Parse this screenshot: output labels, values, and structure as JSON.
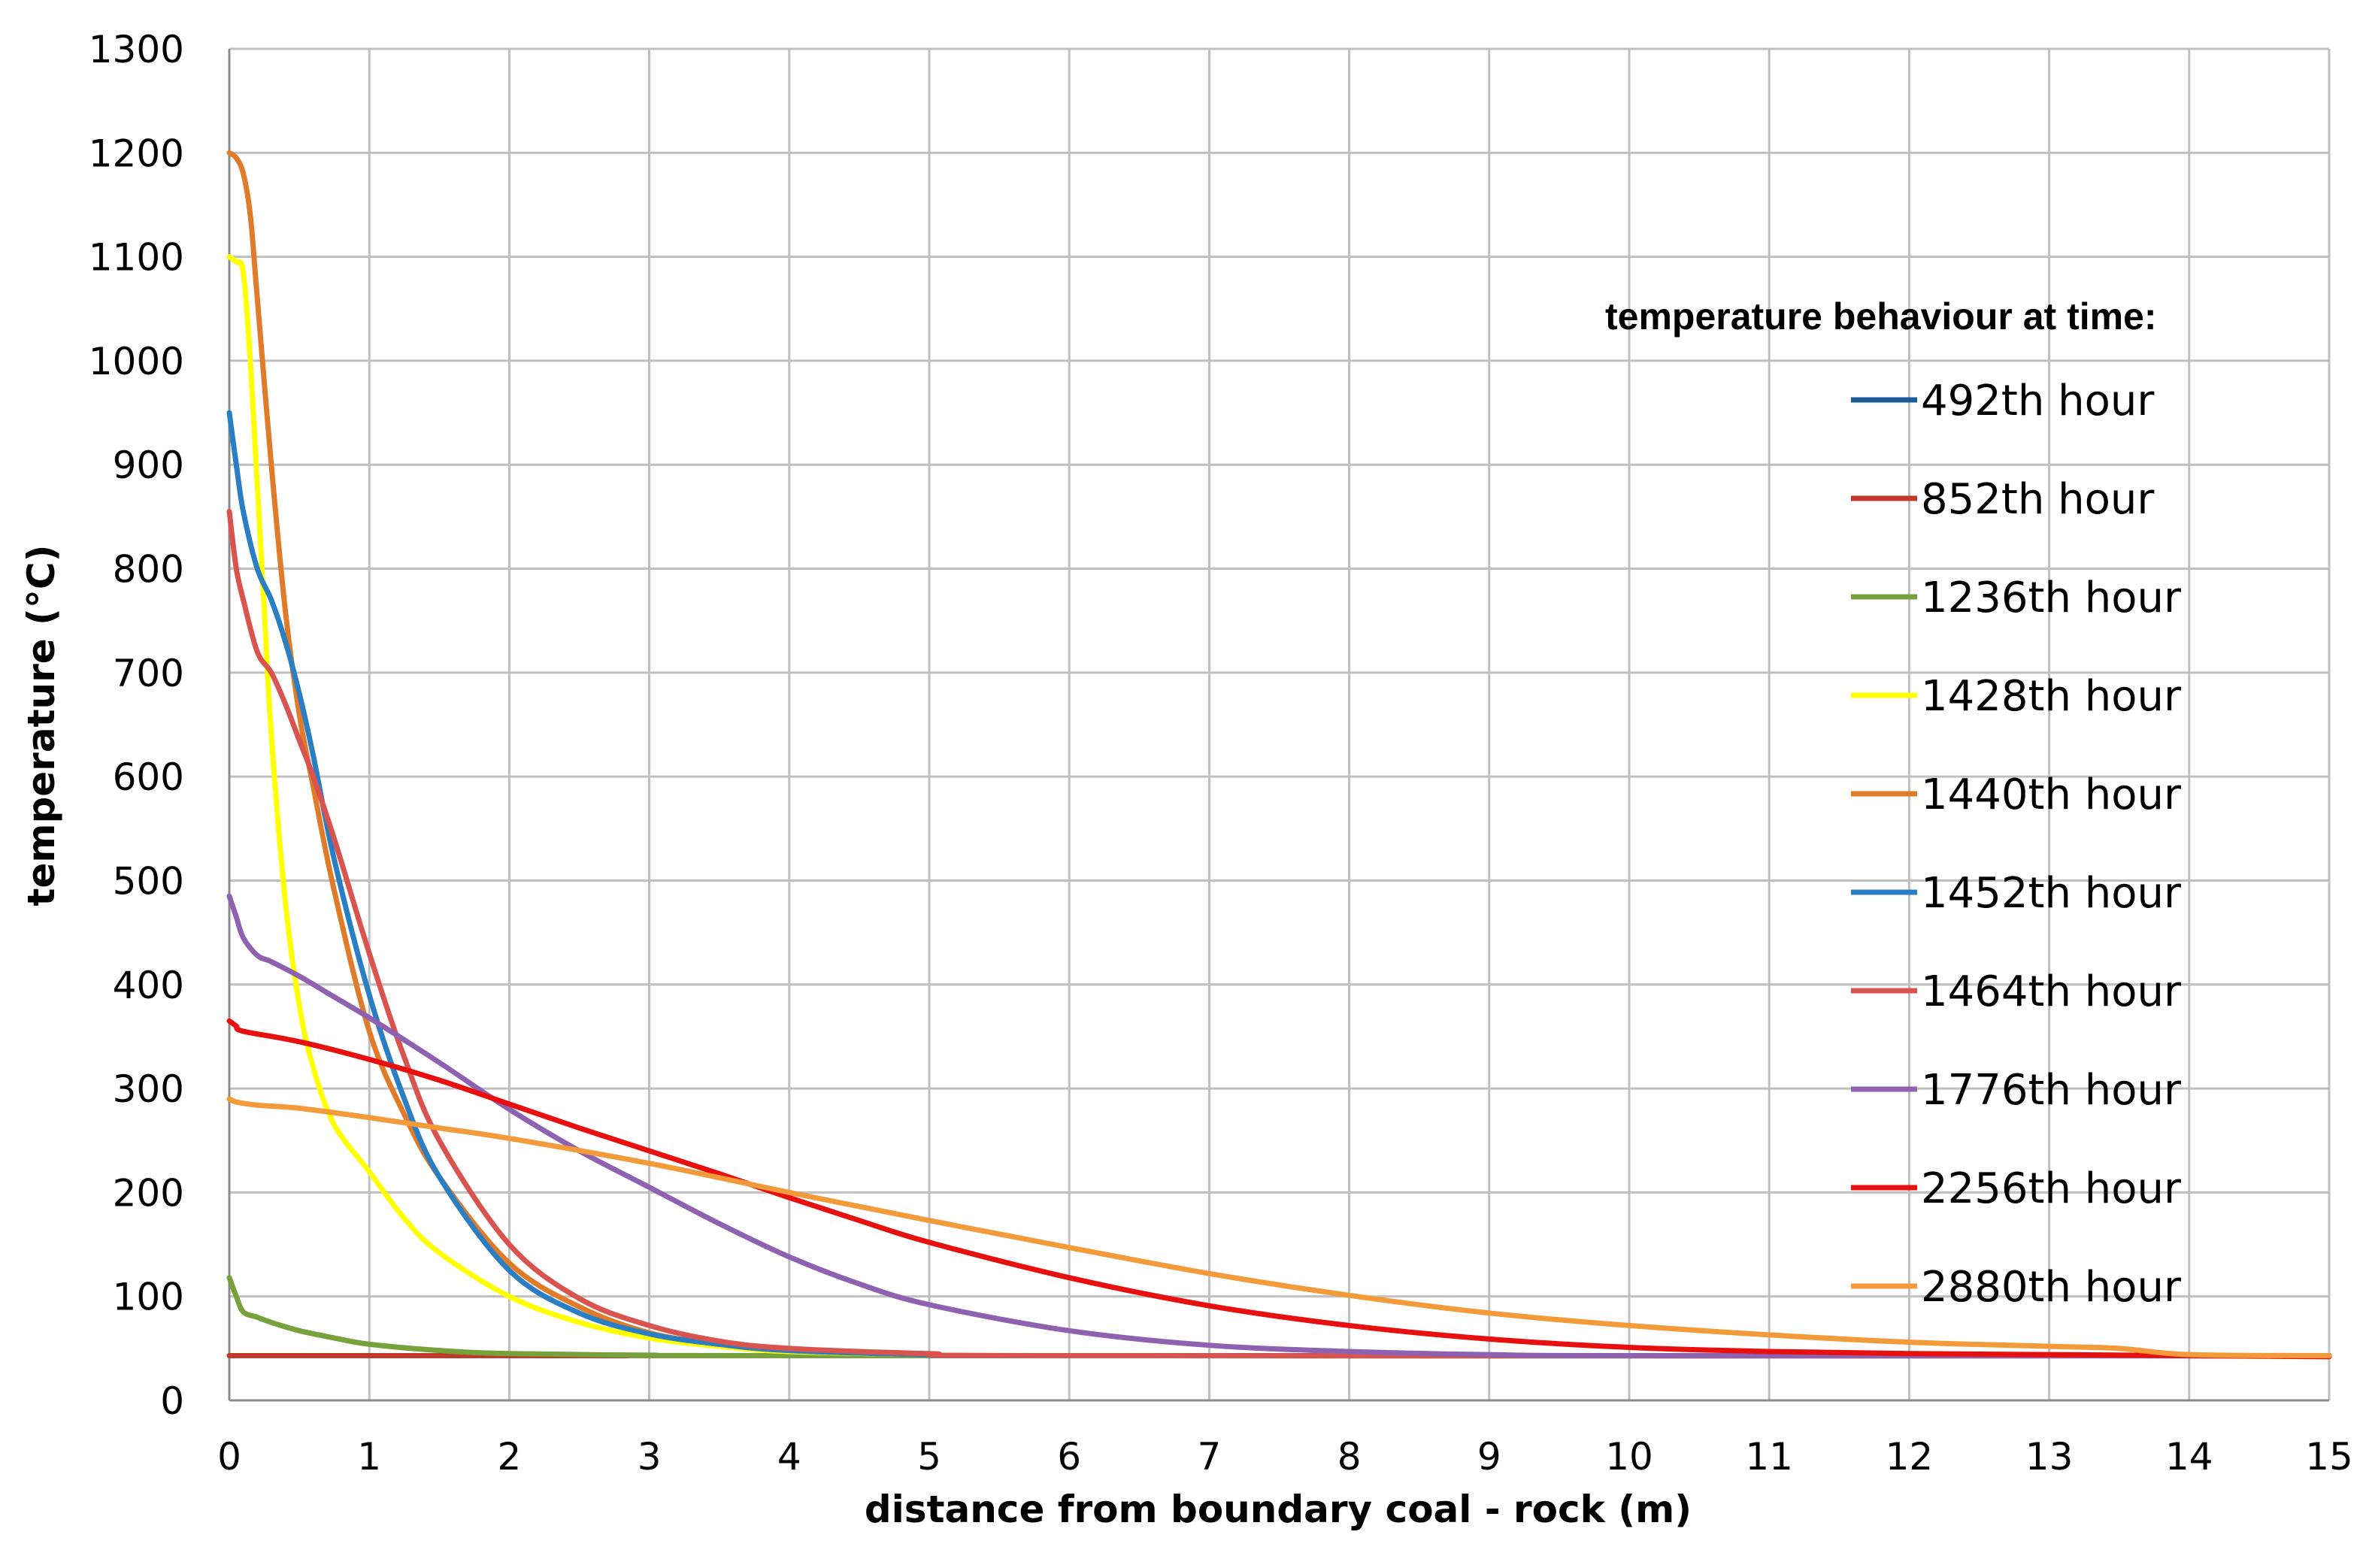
{
  "chart_data": {
    "type": "line",
    "title": "",
    "xlabel": "distance from boundary coal - rock (m)",
    "ylabel": "temperature (°C)",
    "xlim": [
      0,
      15
    ],
    "ylim": [
      0,
      1300
    ],
    "xticks": [
      "0",
      "1",
      "2",
      "3",
      "4",
      "5",
      "6",
      "7",
      "8",
      "9",
      "10",
      "11",
      "12",
      "13",
      "14",
      "15"
    ],
    "yticks": [
      "0",
      "100",
      "200",
      "300",
      "400",
      "500",
      "600",
      "700",
      "800",
      "900",
      "1000",
      "1100",
      "1200",
      "1300"
    ],
    "grid": true,
    "legend_position": "right",
    "legend_title": "temperature behaviour at time:",
    "series": [
      {
        "name": "492th hour",
        "color": "#1f5a96",
        "points": [
          [
            0,
            43
          ],
          [
            15,
            43
          ]
        ]
      },
      {
        "name": "852th hour",
        "color": "#c0392b",
        "points": [
          [
            0,
            43
          ],
          [
            15,
            43
          ]
        ]
      },
      {
        "name": "1236th hour",
        "color": "#77a13a",
        "points": [
          [
            0,
            118
          ],
          [
            0.05,
            100
          ],
          [
            0.1,
            85
          ],
          [
            0.2,
            80
          ],
          [
            0.3,
            75
          ],
          [
            0.5,
            67
          ],
          [
            0.75,
            60
          ],
          [
            1,
            54
          ],
          [
            1.5,
            48
          ],
          [
            2,
            45
          ],
          [
            3,
            43.5
          ],
          [
            4,
            43
          ],
          [
            15,
            43
          ]
        ]
      },
      {
        "name": "1428th hour",
        "color": "#ffff00",
        "points": [
          [
            0,
            1100
          ],
          [
            0.05,
            1095
          ],
          [
            0.1,
            1085
          ],
          [
            0.15,
            1000
          ],
          [
            0.2,
            880
          ],
          [
            0.25,
            760
          ],
          [
            0.3,
            640
          ],
          [
            0.4,
            480
          ],
          [
            0.5,
            380
          ],
          [
            0.6,
            320
          ],
          [
            0.75,
            265
          ],
          [
            1,
            220
          ],
          [
            1.25,
            175
          ],
          [
            1.5,
            142
          ],
          [
            2,
            100
          ],
          [
            2.5,
            75
          ],
          [
            3,
            60
          ],
          [
            3.5,
            52
          ],
          [
            4,
            47
          ],
          [
            5,
            44
          ],
          [
            6,
            43
          ],
          [
            15,
            43
          ]
        ]
      },
      {
        "name": "1440th hour",
        "color": "#e07b2a",
        "points": [
          [
            0,
            1200
          ],
          [
            0.05,
            1195
          ],
          [
            0.1,
            1180
          ],
          [
            0.15,
            1140
          ],
          [
            0.2,
            1060
          ],
          [
            0.3,
            900
          ],
          [
            0.4,
            760
          ],
          [
            0.5,
            660
          ],
          [
            0.6,
            590
          ],
          [
            0.75,
            490
          ],
          [
            1,
            355
          ],
          [
            1.25,
            275
          ],
          [
            1.5,
            215
          ],
          [
            2,
            132
          ],
          [
            2.5,
            90
          ],
          [
            3,
            65
          ],
          [
            3.5,
            54
          ],
          [
            4,
            48
          ],
          [
            5,
            44
          ],
          [
            6,
            43
          ],
          [
            15,
            43
          ]
        ]
      },
      {
        "name": "1452th hour",
        "color": "#2a7fc4",
        "points": [
          [
            0,
            950
          ],
          [
            0.05,
            900
          ],
          [
            0.1,
            855
          ],
          [
            0.2,
            800
          ],
          [
            0.3,
            770
          ],
          [
            0.4,
            730
          ],
          [
            0.5,
            680
          ],
          [
            0.6,
            620
          ],
          [
            0.75,
            520
          ],
          [
            1,
            390
          ],
          [
            1.25,
            290
          ],
          [
            1.5,
            215
          ],
          [
            2,
            125
          ],
          [
            2.5,
            84
          ],
          [
            3,
            64
          ],
          [
            3.5,
            54
          ],
          [
            4,
            48
          ],
          [
            5,
            44
          ],
          [
            6,
            43
          ],
          [
            15,
            43
          ]
        ]
      },
      {
        "name": "1464th hour",
        "color": "#d9534f",
        "points": [
          [
            0,
            855
          ],
          [
            0.05,
            800
          ],
          [
            0.1,
            770
          ],
          [
            0.2,
            720
          ],
          [
            0.3,
            700
          ],
          [
            0.4,
            670
          ],
          [
            0.5,
            635
          ],
          [
            0.6,
            600
          ],
          [
            0.75,
            540
          ],
          [
            1,
            430
          ],
          [
            1.25,
            330
          ],
          [
            1.5,
            250
          ],
          [
            2,
            150
          ],
          [
            2.5,
            98
          ],
          [
            3,
            72
          ],
          [
            3.5,
            57
          ],
          [
            4,
            50
          ],
          [
            5,
            45
          ],
          [
            6,
            43
          ],
          [
            15,
            43
          ]
        ]
      },
      {
        "name": "1776th hour",
        "color": "#8e62b0",
        "points": [
          [
            0,
            485
          ],
          [
            0.05,
            465
          ],
          [
            0.1,
            445
          ],
          [
            0.2,
            428
          ],
          [
            0.3,
            422
          ],
          [
            0.5,
            408
          ],
          [
            0.75,
            388
          ],
          [
            1,
            368
          ],
          [
            1.5,
            325
          ],
          [
            2,
            280
          ],
          [
            2.5,
            240
          ],
          [
            3,
            205
          ],
          [
            3.5,
            170
          ],
          [
            4,
            138
          ],
          [
            4.5,
            112
          ],
          [
            5,
            92
          ],
          [
            6,
            67
          ],
          [
            7,
            53
          ],
          [
            8,
            47
          ],
          [
            9,
            44
          ],
          [
            10,
            43
          ],
          [
            15,
            43
          ]
        ]
      },
      {
        "name": "2256th hour",
        "color": "#e8100f",
        "points": [
          [
            0,
            365
          ],
          [
            0.05,
            360
          ],
          [
            0.1,
            355
          ],
          [
            0.5,
            345
          ],
          [
            1,
            328
          ],
          [
            1.5,
            308
          ],
          [
            2,
            285
          ],
          [
            2.5,
            262
          ],
          [
            3,
            240
          ],
          [
            3.5,
            218
          ],
          [
            4,
            195
          ],
          [
            4.5,
            173
          ],
          [
            5,
            152
          ],
          [
            6,
            118
          ],
          [
            7,
            91
          ],
          [
            8,
            72
          ],
          [
            9,
            59
          ],
          [
            10,
            51
          ],
          [
            11,
            47
          ],
          [
            12,
            45
          ],
          [
            13,
            44
          ],
          [
            14,
            43
          ],
          [
            15,
            42
          ]
        ]
      },
      {
        "name": "2880th hour",
        "color": "#f39a3a",
        "points": [
          [
            0,
            290
          ],
          [
            0.05,
            287
          ],
          [
            0.2,
            284
          ],
          [
            0.5,
            281
          ],
          [
            1,
            272
          ],
          [
            1.5,
            262
          ],
          [
            2,
            252
          ],
          [
            3,
            228
          ],
          [
            4,
            200
          ],
          [
            5,
            173
          ],
          [
            6,
            147
          ],
          [
            7,
            122
          ],
          [
            8,
            101
          ],
          [
            9,
            84
          ],
          [
            10,
            72
          ],
          [
            11,
            63
          ],
          [
            12,
            56
          ],
          [
            13,
            52
          ],
          [
            13.5,
            50
          ],
          [
            14,
            44
          ],
          [
            15,
            43
          ]
        ]
      }
    ]
  }
}
